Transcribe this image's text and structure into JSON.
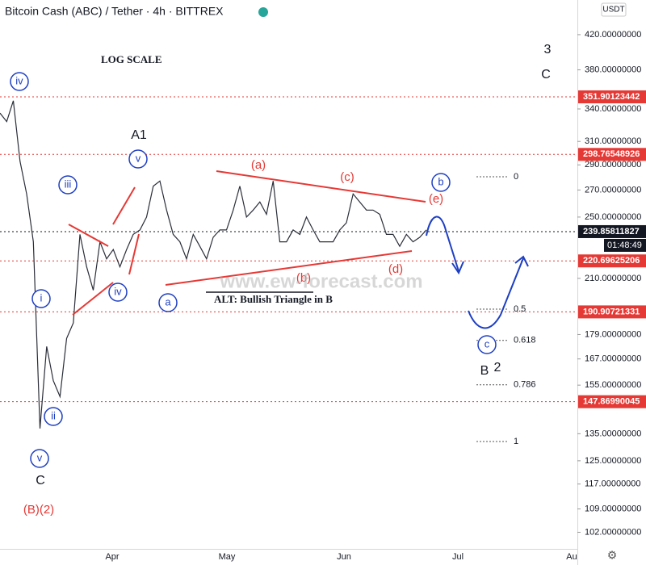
{
  "header": {
    "symbol": "Bitcoin Cash (ABC) / Tether · 4h · BITTREX",
    "currency": "USDT"
  },
  "chart_data": {
    "type": "line",
    "scale": "log",
    "color": "#2a2e39",
    "values": [
      336,
      328,
      348,
      293,
      267,
      233,
      137,
      173,
      157,
      150,
      177,
      185,
      238,
      217,
      203,
      233,
      222,
      228,
      217,
      228,
      238,
      241,
      250,
      273,
      277,
      255,
      238,
      233,
      222,
      238,
      230,
      222,
      236,
      241,
      241,
      255,
      273,
      250,
      255,
      261,
      252,
      277,
      233,
      233,
      241,
      238,
      250,
      241,
      233,
      233,
      233,
      241,
      246,
      267,
      261,
      255,
      255,
      252,
      238,
      238,
      230,
      238,
      233,
      236,
      241
    ],
    "ylim": [
      97.3,
      463.5
    ],
    "yticks": [
      {
        "value": 420,
        "label": "420.00000000"
      },
      {
        "value": 380,
        "label": "380.00000000"
      },
      {
        "value": 340,
        "label": "340.00000000"
      },
      {
        "value": 310,
        "label": "310.00000000"
      },
      {
        "value": 290,
        "label": "290.00000000"
      },
      {
        "value": 270,
        "label": "270.00000000"
      },
      {
        "value": 250,
        "label": "250.00000000"
      },
      {
        "value": 210,
        "label": "210.00000000"
      },
      {
        "value": 179,
        "label": "179.00000000"
      },
      {
        "value": 167,
        "label": "167.00000000"
      },
      {
        "value": 155,
        "label": "155.00000000"
      },
      {
        "value": 135,
        "label": "135.00000000"
      },
      {
        "value": 125,
        "label": "125.00000000"
      },
      {
        "value": 117,
        "label": "117.00000000"
      },
      {
        "value": 109,
        "label": "109.00000000"
      },
      {
        "value": 102,
        "label": "102.00000000"
      }
    ],
    "x_labels": [
      "Apr",
      "May",
      "Jun",
      "Jul",
      "Au"
    ],
    "price_levels": [
      {
        "value": 351.90123442,
        "color": "#e53935"
      },
      {
        "value": 298.76548926,
        "color": "#e53935"
      },
      {
        "value": 239.85811827,
        "color": "#131722"
      },
      {
        "value": 220.69625206,
        "color": "#e53935"
      },
      {
        "value": 190.90721331,
        "color": "#e53935"
      },
      {
        "value": 147.86990045,
        "color": "#e53935"
      }
    ],
    "countdown": "01:48:49",
    "fib_levels": [
      0,
      0.5,
      0.618,
      0.786,
      1
    ],
    "annotations": [
      {
        "text": "LOG SCALE",
        "style": "note"
      },
      {
        "text": "3",
        "style": "black"
      },
      {
        "text": "C",
        "style": "black"
      },
      {
        "text": "A1",
        "style": "black"
      },
      {
        "text": "iv",
        "style": "circle"
      },
      {
        "text": "v",
        "style": "circle"
      },
      {
        "text": "iii",
        "style": "circle"
      },
      {
        "text": "iv",
        "style": "circle"
      },
      {
        "text": "i",
        "style": "circle"
      },
      {
        "text": "ii",
        "style": "circle"
      },
      {
        "text": "v",
        "style": "circle"
      },
      {
        "text": "a",
        "style": "circle"
      },
      {
        "text": "b",
        "style": "circle"
      },
      {
        "text": "c",
        "style": "circle"
      },
      {
        "text": "C",
        "style": "black"
      },
      {
        "text": "B",
        "style": "black"
      },
      {
        "text": "2",
        "style": "black"
      },
      {
        "text": "(B)(2)",
        "style": "red"
      },
      {
        "text": "(a)",
        "style": "red"
      },
      {
        "text": "(c)",
        "style": "red"
      },
      {
        "text": "(e)",
        "style": "red"
      },
      {
        "text": "(b)",
        "style": "red"
      },
      {
        "text": "(d)",
        "style": "red"
      },
      {
        "text": "ALT: Bullish Triangle in B",
        "style": "note"
      },
      {
        "text": "www.ew-forecast.com",
        "style": "watermark"
      }
    ]
  }
}
